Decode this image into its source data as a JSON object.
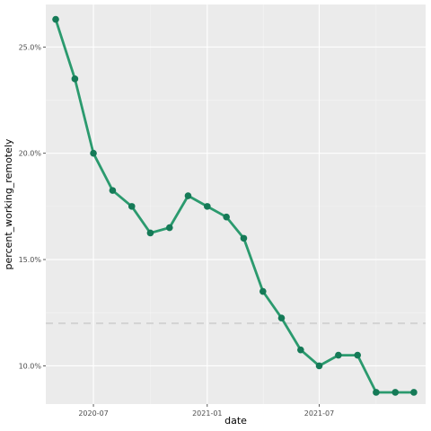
{
  "chart_data": {
    "type": "line",
    "xlabel": "date",
    "ylabel": "percent_working_remotely",
    "x_ticks": [
      "2020-07",
      "2021-01",
      "2021-07"
    ],
    "y_ticks": [
      "10.0%",
      "15.0%",
      "20.0%",
      "25.0%"
    ],
    "y_tick_values": [
      10,
      15,
      20,
      25
    ],
    "x_tick_values": [
      "2020-07-01",
      "2021-01-01",
      "2021-07-01"
    ],
    "xlim": [
      "2020-04-15",
      "2021-12-20"
    ],
    "ylim": [
      8.2,
      27.0
    ],
    "reference_line": {
      "y": 12.0,
      "style": "dashed"
    },
    "grid": true,
    "series": [
      {
        "x": [
          "2020-05-01",
          "2020-06-01",
          "2020-07-01",
          "2020-08-01",
          "2020-09-01",
          "2020-10-01",
          "2020-11-01",
          "2020-12-01",
          "2021-01-01",
          "2021-02-01",
          "2021-03-01",
          "2021-04-01",
          "2021-05-01",
          "2021-06-01",
          "2021-07-01",
          "2021-08-01",
          "2021-09-01",
          "2021-10-01",
          "2021-11-01",
          "2021-12-01"
        ],
        "values": [
          26.3,
          23.5,
          20.0,
          18.25,
          17.5,
          16.25,
          16.5,
          18.0,
          17.5,
          17.0,
          16.0,
          13.5,
          12.25,
          10.75,
          10.0,
          10.5,
          10.5,
          8.75,
          8.75,
          8.75
        ]
      }
    ]
  },
  "colors": {
    "panel": "#ebebeb",
    "grid_major": "#ffffff",
    "grid_minor": "#f5f5f5",
    "line": "#2b9a6e",
    "point": "#157a57",
    "reference": "#d4d4d4"
  }
}
